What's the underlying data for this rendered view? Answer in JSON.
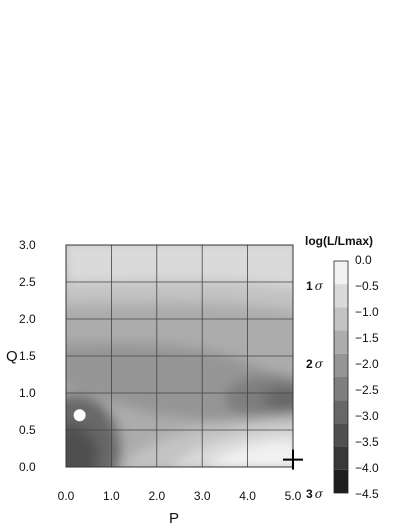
{
  "chart_data": {
    "type": "heatmap",
    "xlabel": "P",
    "ylabel": "Q",
    "xlim": [
      0.0,
      5.0
    ],
    "ylim": [
      0.0,
      3.0
    ],
    "x_ticks": [
      "0.0",
      "1.0",
      "2.0",
      "3.0",
      "4.0",
      "5.0"
    ],
    "y_ticks": [
      "0.0",
      "0.5",
      "1.0",
      "1.5",
      "2.0",
      "2.5",
      "3.0"
    ],
    "grid": true,
    "colorbar": {
      "title": "log(L/Lmax)",
      "ticks": [
        "0.0",
        "−0.5",
        "−1.0",
        "−1.5",
        "−2.0",
        "−2.5",
        "−3.0",
        "−3.5",
        "−4.0",
        "−4.5"
      ],
      "levels": [
        0.0,
        -0.5,
        -1.0,
        -1.5,
        -2.0,
        -2.5,
        -3.0,
        -3.5,
        -4.0,
        -4.5
      ],
      "colors": [
        "#f2f2f2",
        "#dadada",
        "#c3c3c3",
        "#acacac",
        "#959595",
        "#7e7e7e",
        "#676767",
        "#505050",
        "#383838",
        "#1e1e1e"
      ],
      "sigma_labels": [
        {
          "label": "1",
          "symbol": "σ",
          "level": -0.5
        },
        {
          "label": "2",
          "symbol": "σ",
          "level": -2.0
        },
        {
          "label": "3",
          "symbol": "σ",
          "level": -4.5
        }
      ]
    },
    "markers": [
      {
        "type": "max-likelihood-point",
        "x": 0.3,
        "y": 0.7,
        "color": "#ffffff"
      },
      {
        "type": "plus",
        "x": 5.0,
        "y": 0.1,
        "color": "#000000"
      }
    ]
  }
}
